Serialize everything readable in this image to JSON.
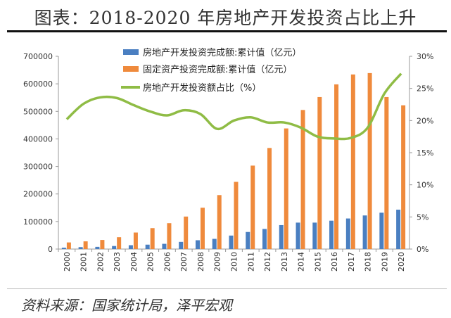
{
  "title": "图表：2018-2020 年房地产开发投资占比上升",
  "source": "资料来源：国家统计局，泽平宏观",
  "colors": {
    "blue": "#4a7fc1",
    "orange": "#ef8a3c",
    "green": "#8fbc45"
  },
  "chart_data": {
    "type": "bar",
    "categories": [
      "2000",
      "2001",
      "2002",
      "2003",
      "2004",
      "2005",
      "2006",
      "2007",
      "2008",
      "2009",
      "2010",
      "2011",
      "2012",
      "2013",
      "2014",
      "2015",
      "2016",
      "2017",
      "2018",
      "2019",
      "2020"
    ],
    "series": [
      {
        "name": "房地产开发投资完成额:累计值（亿元）",
        "type": "bar",
        "axis": "left",
        "values": [
          5000,
          7000,
          8000,
          11000,
          14000,
          16000,
          19000,
          26000,
          32000,
          37000,
          49000,
          62000,
          73000,
          87000,
          96000,
          96000,
          103000,
          111000,
          122000,
          132000,
          143000
        ]
      },
      {
        "name": "固定资产投资完成额:累计值（亿元）",
        "type": "bar",
        "axis": "left",
        "values": [
          24000,
          28000,
          33000,
          43000,
          60000,
          76000,
          94000,
          118000,
          150000,
          196000,
          244000,
          303000,
          367000,
          438000,
          505000,
          552000,
          598000,
          634000,
          639000,
          552000,
          522000
        ]
      },
      {
        "name": "房地产开发投资额占比（%）",
        "type": "line",
        "axis": "right",
        "values": [
          20.2,
          22.6,
          23.6,
          23.5,
          22.4,
          21.4,
          20.8,
          21.6,
          21.0,
          18.7,
          20.0,
          20.5,
          19.7,
          19.7,
          18.9,
          17.5,
          17.2,
          17.3,
          18.9,
          24.2,
          27.3
        ]
      }
    ],
    "left_axis": {
      "ylim": [
        0,
        700000
      ],
      "ticks": [
        "0",
        "100000",
        "200000",
        "300000",
        "400000",
        "500000",
        "600000",
        "700000"
      ]
    },
    "right_axis": {
      "ylim": [
        0,
        30
      ],
      "ticks": [
        "0%",
        "5%",
        "10%",
        "15%",
        "20%",
        "25%",
        "30%"
      ]
    },
    "legend": "top-center",
    "grid": false
  }
}
